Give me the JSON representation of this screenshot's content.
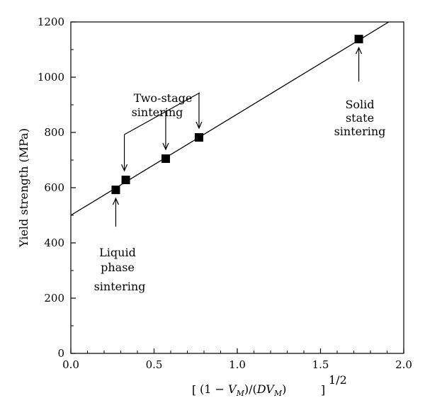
{
  "chart_data": {
    "type": "scatter",
    "title": "",
    "xlabel_parts": {
      "open": "[",
      "body_prefix": "(1 − ",
      "v1": "V",
      "v1_sub": "M",
      "mid": ")/(",
      "d": "D",
      "v2": "V",
      "v2_sub": "M",
      "close_paren": ")",
      "close": "]",
      "exponent": "1/2"
    },
    "ylabel": "Yield strength (MPa)",
    "xlim": [
      0.0,
      2.0
    ],
    "ylim": [
      0,
      1200
    ],
    "x_ticks": [
      0.0,
      0.5,
      1.0,
      1.5,
      2.0
    ],
    "x_tick_labels": [
      "0.0",
      "0.5",
      "1.0",
      "1.5",
      "2.0"
    ],
    "y_ticks": [
      0,
      200,
      400,
      600,
      800,
      1000,
      1200
    ],
    "y_tick_labels": [
      "0",
      "200",
      "400",
      "600",
      "800",
      "1000",
      "1200"
    ],
    "grid": false,
    "series": [
      {
        "x": [
          0.27,
          0.33,
          0.57,
          0.77,
          1.73
        ],
        "y": [
          592,
          628,
          705,
          782,
          1138
        ],
        "marker": "square",
        "color": "#000000"
      }
    ],
    "fit_line": {
      "x": [
        0.0,
        1.91
      ],
      "y": [
        500,
        1200
      ]
    },
    "annotations": [
      {
        "id": "liquid",
        "lines": [
          "Liquid",
          "phase",
          "sintering"
        ]
      },
      {
        "id": "two-stage",
        "lines": [
          "Two-stage",
          "sintering"
        ]
      },
      {
        "id": "solid",
        "lines": [
          "Solid",
          "state",
          "sintering"
        ]
      }
    ]
  }
}
